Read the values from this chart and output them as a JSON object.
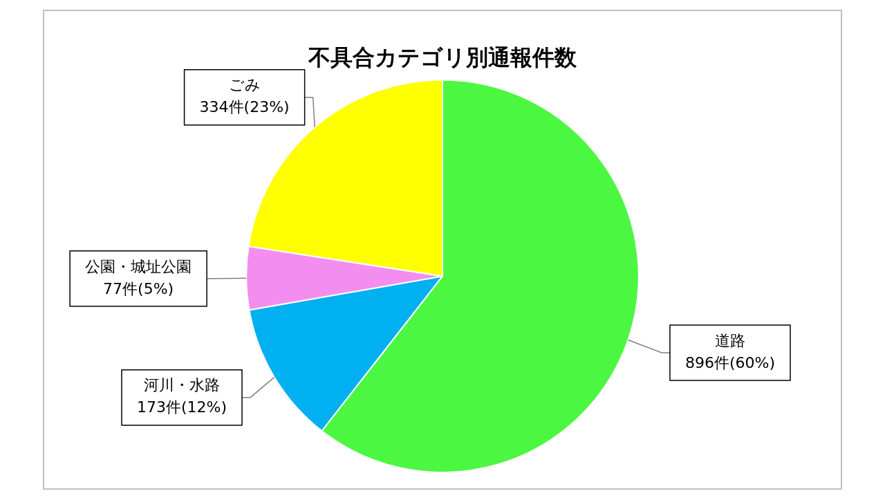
{
  "chart_data": {
    "type": "pie",
    "title": "不具合カテゴリ別通報件数",
    "categories": [
      "道路",
      "河川・水路",
      "公園・城址公園",
      "ごみ"
    ],
    "values": [
      896,
      173,
      77,
      334
    ],
    "value_labels": [
      "896件(60%)",
      "173件(12%)",
      "77件(5%)",
      "334件(23%)"
    ],
    "colors": [
      "#4cf742",
      "#00b0f0",
      "#f38ef0",
      "#ffff00"
    ],
    "legend": false
  }
}
